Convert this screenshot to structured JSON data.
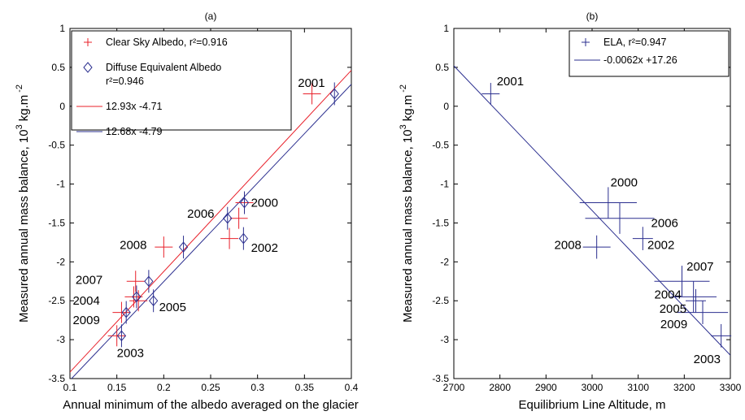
{
  "chart_data": [
    {
      "type": "scatter",
      "title": "(a)",
      "xlabel": "Annual minimum of the albedo averaged on the glacier",
      "ylabel": "Measured annual mass balance, 10",
      "ylabel_sup1": "3",
      "ylabel_unit": "kg.m",
      "ylabel_sup2": "-2",
      "xlim": [
        0.1,
        0.4
      ],
      "ylim": [
        -3.5,
        1
      ],
      "xticks": [
        0.1,
        0.15,
        0.2,
        0.25,
        0.3,
        0.35,
        0.4
      ],
      "xtick_labels": [
        "0.1",
        "0.15",
        "0.2",
        "0.25",
        "0.3",
        "0.35",
        "0.4"
      ],
      "yticks": [
        -3.5,
        -3,
        -2.5,
        -2,
        -1.5,
        -1,
        -0.5,
        0,
        0.5,
        1
      ],
      "ytick_labels": [
        "-3.5",
        "-3",
        "-2.5",
        "-2",
        "-1.5",
        "-1",
        "-0.5",
        "0",
        "0.5",
        "1"
      ],
      "grid": false,
      "legend_position": "top-left",
      "legend": [
        {
          "label": "Clear Sky Albedo, r²=0.916",
          "marker": "plus",
          "color": "#e8202a"
        },
        {
          "label": "Diffuse Equivalent Albedo",
          "label2": "r²=0.946",
          "marker": "diamond",
          "color": "#2b2f8f"
        },
        {
          "label": "12.93x -4.71",
          "line": true,
          "color": "#e8202a"
        },
        {
          "label": "12.68x -4.79",
          "line": true,
          "color": "#2b2f8f"
        }
      ],
      "series": [
        {
          "name": "Clear Sky Albedo, r²=0.916",
          "marker": "plus",
          "color": "#e8202a",
          "x": [
            0.358,
            0.286,
            0.27,
            0.28,
            0.2,
            0.17,
            0.168,
            0.173,
            0.155,
            0.15
          ],
          "y": [
            0.16,
            -1.24,
            -1.7,
            -1.44,
            -1.81,
            -2.25,
            -2.45,
            -2.5,
            -2.65,
            -2.95
          ]
        },
        {
          "name": "Diffuse Equivalent Albedo",
          "marker": "diamond",
          "color": "#2b2f8f",
          "x": [
            0.382,
            0.286,
            0.285,
            0.268,
            0.221,
            0.184,
            0.171,
            0.189,
            0.16,
            0.155
          ],
          "y": [
            0.16,
            -1.24,
            -1.7,
            -1.44,
            -1.81,
            -2.25,
            -2.45,
            -2.5,
            -2.65,
            -2.95
          ]
        }
      ],
      "fits": [
        {
          "label": "12.93x -4.71",
          "color": "#e8202a",
          "slope": 12.93,
          "intercept": -4.71
        },
        {
          "label": "12.68x -4.79",
          "color": "#2b2f8f",
          "slope": 12.68,
          "intercept": -4.79
        }
      ],
      "annotations": [
        {
          "text": "2001",
          "x": 0.343,
          "y": 0.3
        },
        {
          "text": "2000",
          "x": 0.293,
          "y": -1.24
        },
        {
          "text": "2006",
          "x": 0.225,
          "y": -1.38
        },
        {
          "text": "2002",
          "x": 0.293,
          "y": -1.82
        },
        {
          "text": "2008",
          "x": 0.153,
          "y": -1.78
        },
        {
          "text": "2007",
          "x": 0.106,
          "y": -2.23
        },
        {
          "text": "2004",
          "x": 0.103,
          "y": -2.5
        },
        {
          "text": "2005",
          "x": 0.195,
          "y": -2.58
        },
        {
          "text": "2009",
          "x": 0.103,
          "y": -2.75
        },
        {
          "text": "2003",
          "x": 0.15,
          "y": -3.17
        }
      ]
    },
    {
      "type": "scatter",
      "title": "(b)",
      "xlabel": "Equilibrium Line Altitude, m",
      "ylabel": "Measured annual mass balance, 10",
      "ylabel_sup1": "3",
      "ylabel_unit": "kg.m",
      "ylabel_sup2": "-2",
      "xlim": [
        2700,
        3300
      ],
      "ylim": [
        -3.5,
        1
      ],
      "xticks": [
        2700,
        2800,
        2900,
        3000,
        3100,
        3200,
        3300
      ],
      "xtick_labels": [
        "2700",
        "2800",
        "2900",
        "3000",
        "3100",
        "3200",
        "3300"
      ],
      "yticks": [
        -3.5,
        -3,
        -2.5,
        -2,
        -1.5,
        -1,
        -0.5,
        0,
        0.5,
        1
      ],
      "ytick_labels": [
        "-3.5",
        "-3",
        "-2.5",
        "-2",
        "-1.5",
        "-1",
        "-0.5",
        "0",
        "0.5",
        "1"
      ],
      "grid": false,
      "legend_position": "top-right",
      "legend": [
        {
          "label": "ELA, r²=0.947",
          "marker": "plus",
          "color": "#2b2f8f"
        },
        {
          "label": "-0.0062x +17.26",
          "line": true,
          "color": "#2b2f8f"
        }
      ],
      "series": [
        {
          "name": "ELA, r²=0.947",
          "marker": "plus",
          "color": "#2b2f8f",
          "x": [
            2780,
            3035,
            3060,
            3010,
            3110,
            3195,
            3220,
            3225,
            3240,
            3280
          ],
          "y": [
            0.16,
            -1.24,
            -1.44,
            -1.81,
            -1.7,
            -2.25,
            -2.45,
            -2.5,
            -2.65,
            -2.95
          ],
          "xerr": [
            0,
            62,
            75,
            30,
            22,
            60,
            50,
            22,
            55,
            22
          ],
          "yerr": [
            0.14,
            0.2,
            0.2,
            0.15,
            0.15,
            0.2,
            0.2,
            0.15,
            0.15,
            0.15
          ]
        }
      ],
      "fits": [
        {
          "label": "-0.0062x +17.26",
          "color": "#2b2f8f",
          "slope": -0.0062,
          "intercept": 17.26
        }
      ],
      "annotations": [
        {
          "text": "2001",
          "x": 2793,
          "y": 0.32
        },
        {
          "text": "2000",
          "x": 3040,
          "y": -0.98
        },
        {
          "text": "2006",
          "x": 3128,
          "y": -1.5
        },
        {
          "text": "2002",
          "x": 3120,
          "y": -1.78
        },
        {
          "text": "2008",
          "x": 2918,
          "y": -1.78
        },
        {
          "text": "2007",
          "x": 3205,
          "y": -2.06
        },
        {
          "text": "2004",
          "x": 3135,
          "y": -2.42
        },
        {
          "text": "2005",
          "x": 3146,
          "y": -2.6
        },
        {
          "text": "2009",
          "x": 3148,
          "y": -2.8
        },
        {
          "text": "2003",
          "x": 3220,
          "y": -3.25
        }
      ]
    }
  ]
}
